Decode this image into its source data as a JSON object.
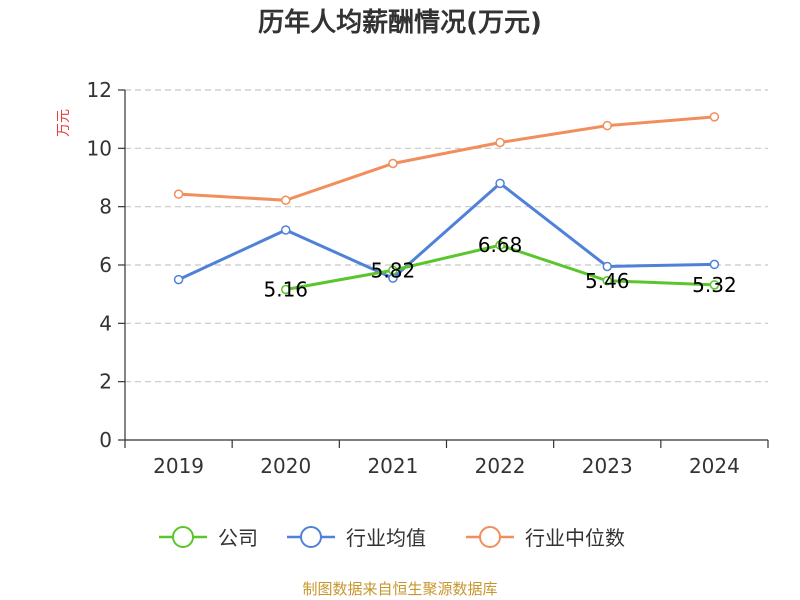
{
  "chart_data": {
    "type": "line",
    "title": "历年人均薪酬情况(万元)",
    "ylabel": "万元",
    "xlabel": "",
    "categories": [
      "2019",
      "2020",
      "2021",
      "2022",
      "2023",
      "2024"
    ],
    "ylim": [
      0,
      12
    ],
    "yticks": [
      "0",
      "2",
      "4",
      "6",
      "8",
      "10",
      "12"
    ],
    "grid": true,
    "legend_position": "bottom",
    "series": [
      {
        "name": "公司",
        "color": "#5bc52c",
        "values": [
          null,
          5.16,
          5.82,
          6.68,
          5.46,
          5.32
        ],
        "labels": [
          "",
          "5.16",
          "5.82",
          "6.68",
          "5.46",
          "5.32"
        ]
      },
      {
        "name": "行业均值",
        "color": "#4f81d8",
        "values": [
          5.5,
          7.2,
          5.55,
          8.8,
          5.95,
          6.02
        ],
        "labels": []
      },
      {
        "name": "行业中位数",
        "color": "#f28e5b",
        "values": [
          8.43,
          8.22,
          9.48,
          10.2,
          10.78,
          11.08
        ],
        "labels": []
      }
    ]
  },
  "footer": {
    "source": "制图数据来自恒生聚源数据库"
  }
}
